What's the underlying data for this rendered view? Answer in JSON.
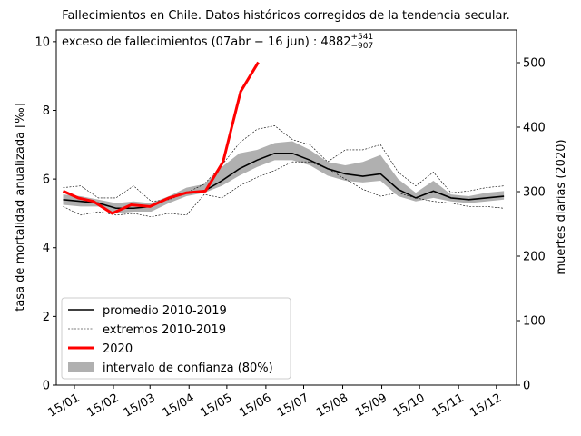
{
  "chart_data": {
    "type": "line",
    "title": "Fallecimientos en Chile. Datos históricos corregidos de la tendencia secular.",
    "annotation": {
      "text": "exceso de fallecimientos (07abr − 16 jun) : 4882",
      "sup": "+541",
      "sub": "−907"
    },
    "ylabel": "tasa de mortalidad anualizada [‰]",
    "y2label": "muertes diarias (2020)",
    "x": [
      6,
      20,
      34,
      48,
      62,
      76,
      90,
      104,
      118,
      132,
      146,
      160,
      174,
      188,
      202,
      216,
      230,
      244,
      258,
      272,
      286,
      300,
      314,
      328,
      342,
      356
    ],
    "xlim": [
      0.6,
      366
    ],
    "xticks": [
      {
        "value": 15,
        "label": "15/01"
      },
      {
        "value": 46,
        "label": "15/02"
      },
      {
        "value": 75,
        "label": "15/03"
      },
      {
        "value": 106,
        "label": "15/04"
      },
      {
        "value": 136,
        "label": "15/05"
      },
      {
        "value": 167,
        "label": "15/06"
      },
      {
        "value": 197,
        "label": "15/07"
      },
      {
        "value": 228,
        "label": "15/08"
      },
      {
        "value": 259,
        "label": "15/09"
      },
      {
        "value": 289,
        "label": "15/10"
      },
      {
        "value": 320,
        "label": "15/11"
      },
      {
        "value": 350,
        "label": "15/12"
      }
    ],
    "ylim": [
      0,
      10.34
    ],
    "yticks": [
      0,
      2,
      4,
      6,
      8,
      10
    ],
    "y2lim": [
      0,
      550.7
    ],
    "y2ticks": [
      0,
      100,
      200,
      300,
      400,
      500
    ],
    "legend": "lower left",
    "band": {
      "name": "intervalo de confianza (80%)",
      "color": "#b0b0b0",
      "upper": [
        5.55,
        5.5,
        5.4,
        5.3,
        5.35,
        5.3,
        5.5,
        5.75,
        5.85,
        6.35,
        6.75,
        6.85,
        7.05,
        7.1,
        6.85,
        6.5,
        6.4,
        6.5,
        6.7,
        6.0,
        5.6,
        5.95,
        5.55,
        5.5,
        5.6,
        5.65
      ],
      "lower": [
        5.25,
        5.2,
        5.2,
        5.0,
        5.05,
        5.05,
        5.3,
        5.5,
        5.6,
        5.8,
        6.1,
        6.35,
        6.55,
        6.55,
        6.4,
        6.1,
        5.95,
        5.9,
        5.95,
        5.5,
        5.35,
        5.45,
        5.35,
        5.3,
        5.35,
        5.4
      ]
    },
    "extremes": {
      "name": "extremos 2010-2019",
      "color": "#000000",
      "upper": [
        5.75,
        5.8,
        5.45,
        5.45,
        5.8,
        5.35,
        5.4,
        5.6,
        5.85,
        6.4,
        7.05,
        7.45,
        7.55,
        7.15,
        7.0,
        6.5,
        6.85,
        6.85,
        7.0,
        6.2,
        5.8,
        6.2,
        5.6,
        5.65,
        5.75,
        5.8
      ],
      "lower": [
        5.2,
        4.95,
        5.05,
        4.95,
        5.0,
        4.9,
        5.0,
        4.95,
        5.55,
        5.45,
        5.8,
        6.05,
        6.25,
        6.5,
        6.5,
        6.3,
        6.0,
        5.7,
        5.5,
        5.6,
        5.45,
        5.35,
        5.3,
        5.2,
        5.2,
        5.15
      ]
    },
    "series": [
      {
        "name": "promedio 2010-2019",
        "color": "#000000",
        "width": 1.6,
        "values": [
          5.4,
          5.35,
          5.3,
          5.15,
          5.15,
          5.2,
          5.45,
          5.6,
          5.65,
          5.95,
          6.3,
          6.55,
          6.75,
          6.75,
          6.55,
          6.3,
          6.15,
          6.08,
          6.15,
          5.7,
          5.45,
          5.65,
          5.45,
          5.4,
          5.45,
          5.5
        ]
      },
      {
        "name": "2020",
        "color": "#ff0000",
        "width": 3,
        "x": [
          6,
          18,
          30,
          45,
          60,
          75,
          90,
          104,
          119,
          133,
          147,
          161
        ],
        "values": [
          5.65,
          5.45,
          5.35,
          5.0,
          5.25,
          5.2,
          5.45,
          5.6,
          5.65,
          6.5,
          8.55,
          9.4
        ]
      }
    ]
  }
}
